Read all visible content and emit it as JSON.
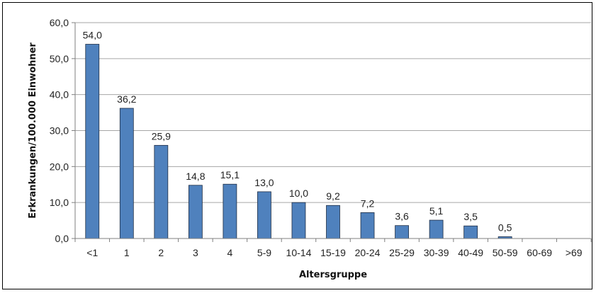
{
  "chart_data": {
    "type": "bar",
    "title": "",
    "xlabel": "Altersgruppe",
    "ylabel": "Erkrankungen/100.000 Einwohner",
    "categories": [
      "<1",
      "1",
      "2",
      "3",
      "4",
      "5-9",
      "10-14",
      "15-19",
      "20-24",
      "25-29",
      "30-39",
      "40-49",
      "50-59",
      "60-69",
      ">69"
    ],
    "values": [
      54.0,
      36.2,
      25.9,
      14.8,
      15.1,
      13.0,
      10.0,
      9.2,
      7.2,
      3.6,
      5.1,
      3.5,
      0.5,
      null,
      null
    ],
    "value_labels": [
      "54,0",
      "36,2",
      "25,9",
      "14,8",
      "15,1",
      "13,0",
      "10,0",
      "9,2",
      "7,2",
      "3,6",
      "5,1",
      "3,5",
      "0,5",
      "",
      ""
    ],
    "ylim": [
      0,
      60
    ],
    "yticks": [
      0,
      10,
      20,
      30,
      40,
      50,
      60
    ],
    "ytick_labels": [
      "0,0",
      "10,0",
      "20,0",
      "30,0",
      "40,0",
      "50,0",
      "60,0"
    ],
    "grid": true,
    "legend": "none",
    "colors": {
      "bar": "#4f81bd",
      "bar_edge": "#1f2d44",
      "grid": "#a6a6a6",
      "axis": "#7f7f7f"
    }
  }
}
